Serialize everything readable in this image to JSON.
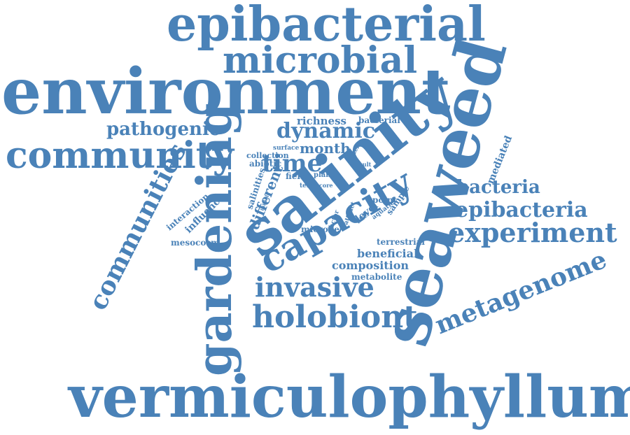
{
  "color": "#4a82b8",
  "words": [
    "epibacterial",
    "microbial",
    "environment",
    "seaweed",
    "salinity",
    "gardening",
    "vermiculophyllum",
    "community",
    "pathogenic",
    "dynamic",
    "capacity",
    "communities",
    "holobiont",
    "invasive",
    "metagenome",
    "experiment",
    "epibacteria",
    "bacteria",
    "time",
    "month",
    "richness",
    "bacterial",
    "composition",
    "beneficial",
    "terrestrial",
    "metabolite",
    "different",
    "salinities",
    "mesocosm",
    "influence",
    "interaction",
    "abiotic",
    "collection",
    "surface",
    "field",
    "plant",
    "term",
    "core",
    "mediated",
    "microbe",
    "factor",
    "attract",
    "level",
    "point",
    "sample",
    "aquatic",
    "alter",
    "deter",
    "result",
    "initial"
  ]
}
